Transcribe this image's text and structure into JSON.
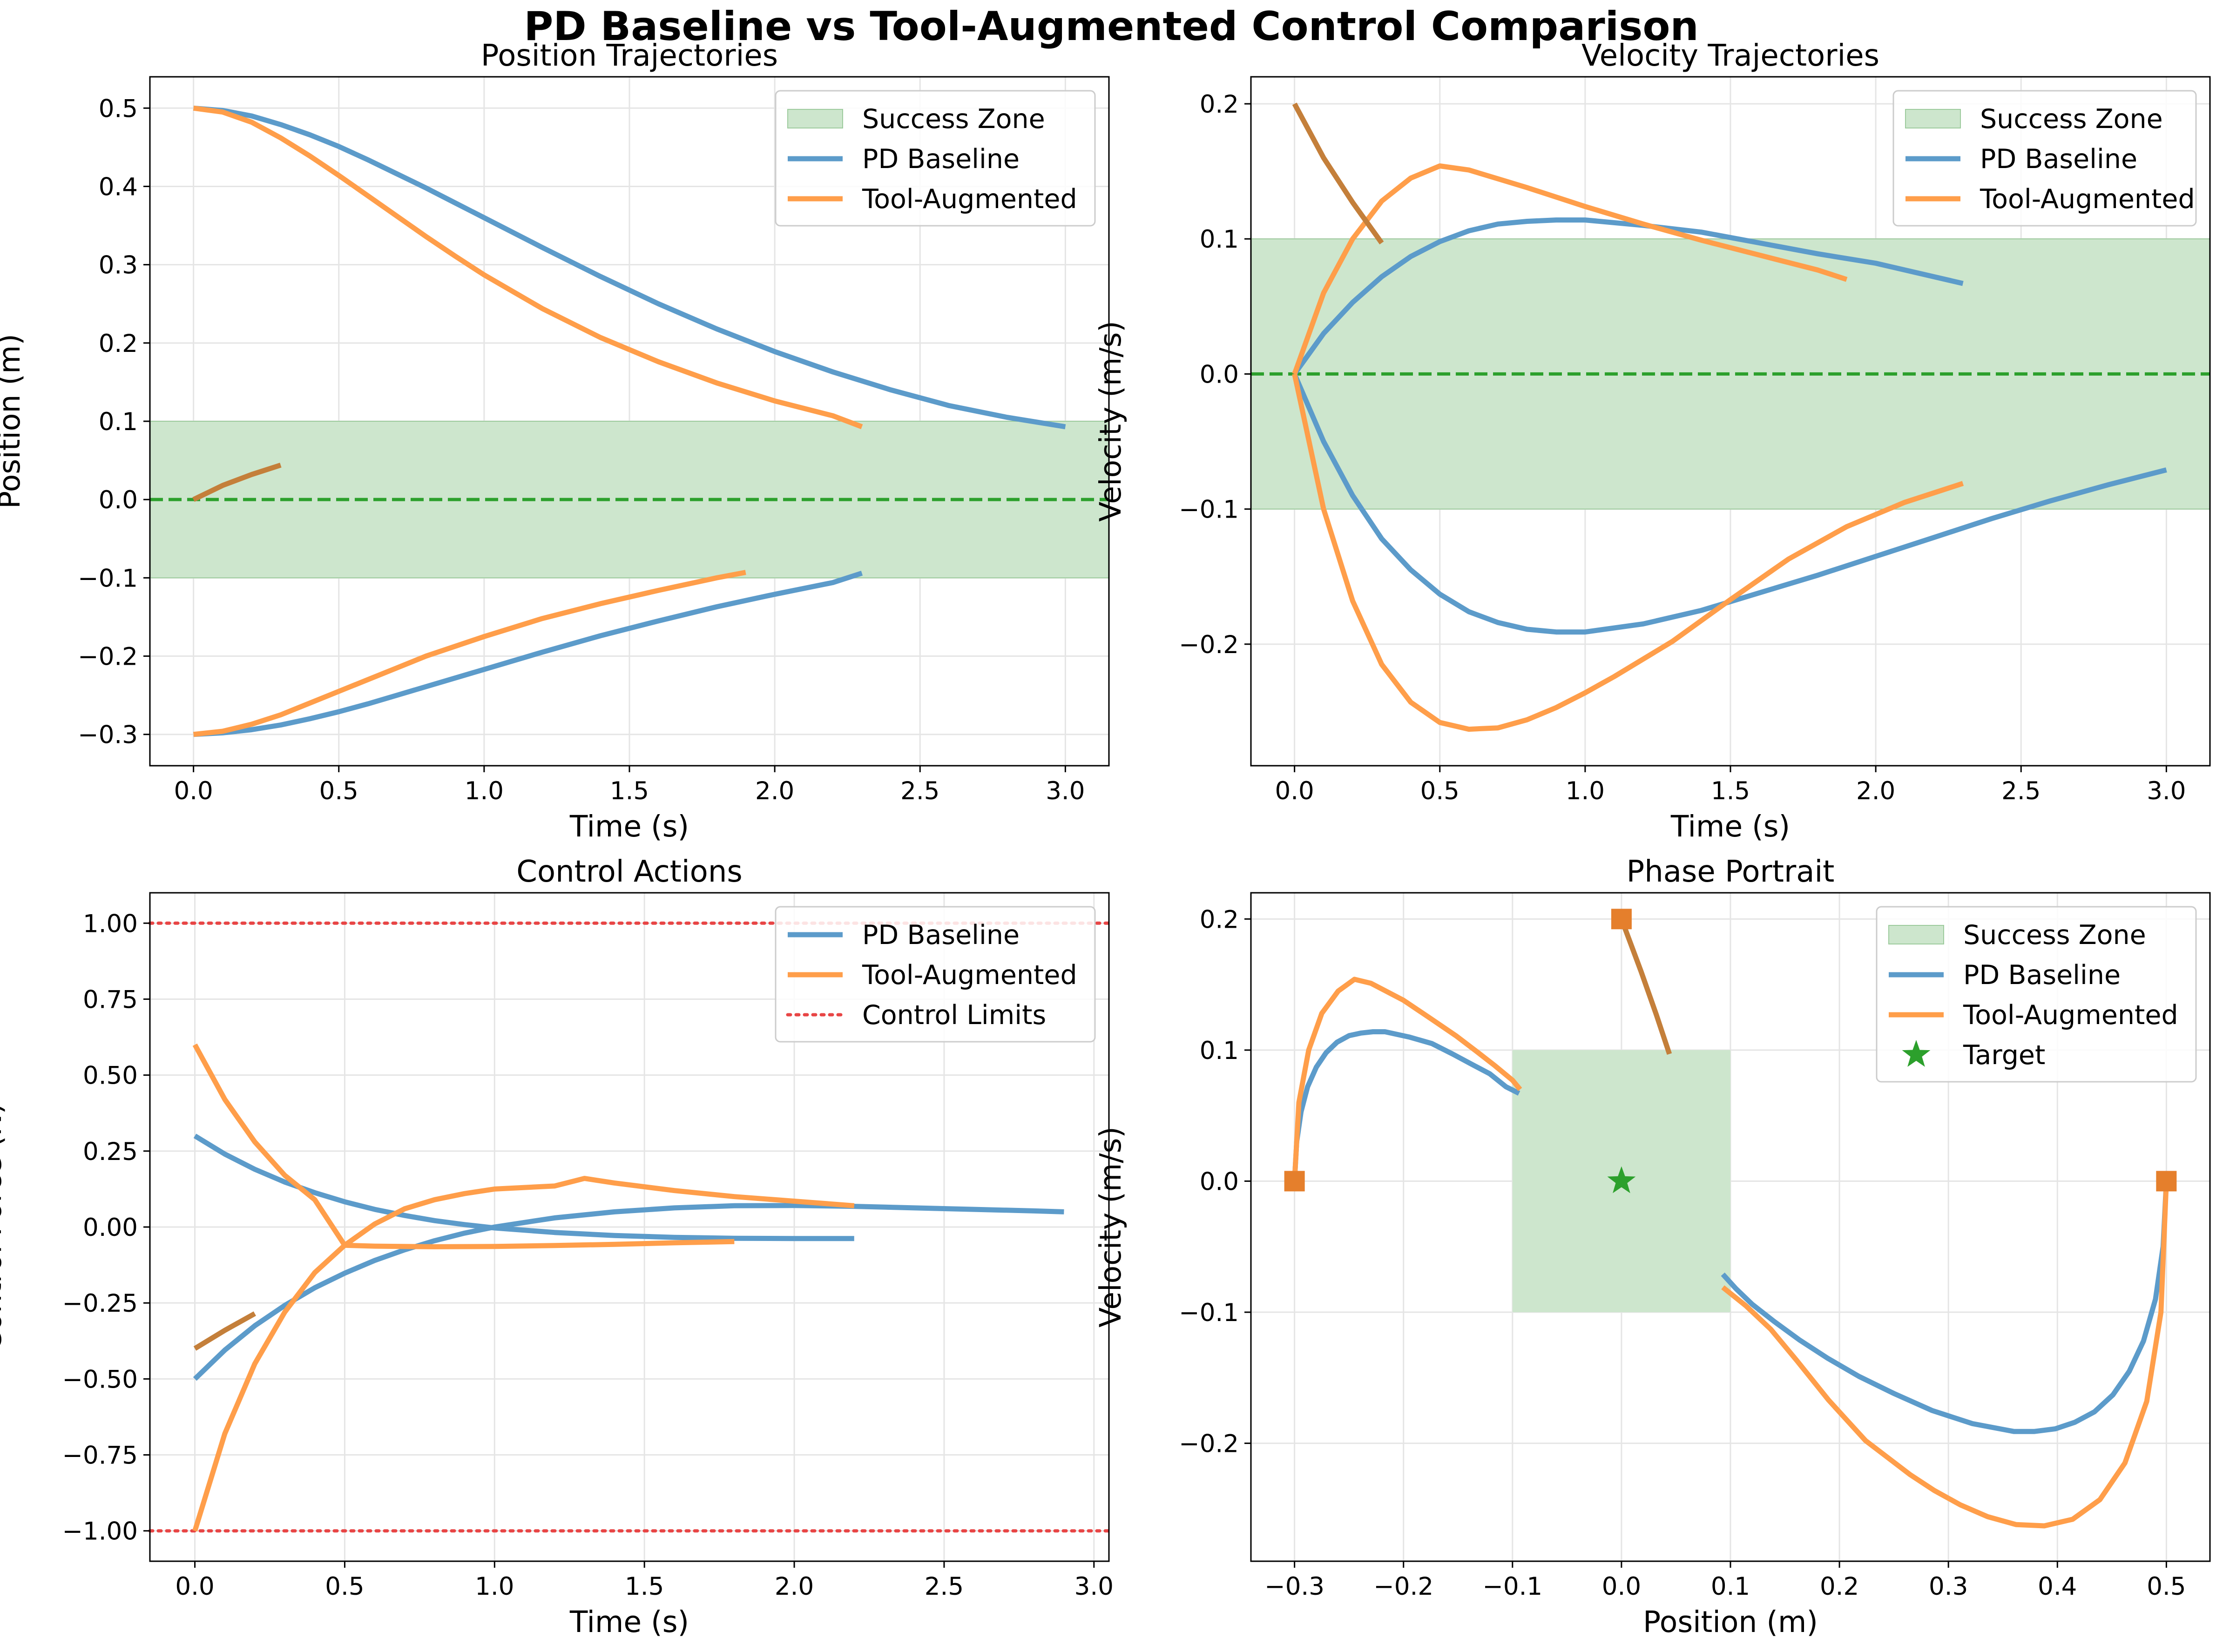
{
  "figure": {
    "title": "PD Baseline vs Tool-Augmented Control Comparison"
  },
  "colors": {
    "pd": "#5c9bca",
    "tool": "#ff9e4a",
    "overlap": "#c47f3a",
    "marker": "#e57f2c",
    "zone": "#cde6cd",
    "zone_edge": "#9dcb9d",
    "target_line": "#2ca02c",
    "limit": "#e84545",
    "grid": "#e5e5e5"
  },
  "chart_data": [
    {
      "type": "line",
      "title": "Position Trajectories",
      "xlabel": "Time (s)",
      "ylabel": "Position (m)",
      "xlim": [
        -0.15,
        3.15
      ],
      "ylim": [
        -0.34,
        0.54
      ],
      "xticks": [
        0.0,
        0.5,
        1.0,
        1.5,
        2.0,
        2.5,
        3.0
      ],
      "xtick_labels": [
        "0.0",
        "0.5",
        "1.0",
        "1.5",
        "2.0",
        "2.5",
        "3.0"
      ],
      "yticks": [
        -0.3,
        -0.2,
        -0.1,
        0.0,
        0.1,
        0.2,
        0.3,
        0.4,
        0.5
      ],
      "ytick_labels": [
        "−0.3",
        "−0.2",
        "−0.1",
        "0.0",
        "0.1",
        "0.2",
        "0.3",
        "0.4",
        "0.5"
      ],
      "grid": true,
      "legend_position": "top-right",
      "success_zone": {
        "axis": "y",
        "range": [
          -0.1,
          0.1
        ]
      },
      "target_line": 0.0,
      "legend": [
        {
          "label": "Success Zone",
          "kind": "patch"
        },
        {
          "label": "PD Baseline",
          "kind": "pd"
        },
        {
          "label": "Tool-Augmented",
          "kind": "tool"
        }
      ],
      "series": [
        {
          "name": "PD Baseline",
          "role": "pd",
          "x": [
            0,
            0.1,
            0.2,
            0.3,
            0.4,
            0.5,
            0.6,
            0.7,
            0.8,
            0.9,
            1.0,
            1.2,
            1.4,
            1.6,
            1.8,
            2.0,
            2.2,
            2.4,
            2.6,
            2.8,
            3.0
          ],
          "y": [
            0.5,
            0.497,
            0.49,
            0.479,
            0.466,
            0.451,
            0.434,
            0.416,
            0.398,
            0.379,
            0.36,
            0.322,
            0.285,
            0.25,
            0.218,
            0.189,
            0.163,
            0.14,
            0.12,
            0.105,
            0.093
          ]
        },
        {
          "role": "pd",
          "x": [
            0,
            0.1,
            0.2,
            0.3,
            0.4,
            0.5,
            0.6,
            0.7,
            0.8,
            1.0,
            1.2,
            1.4,
            1.6,
            1.8,
            2.0,
            2.2,
            2.3
          ],
          "y": [
            -0.3,
            -0.298,
            -0.294,
            -0.288,
            -0.28,
            -0.271,
            -0.261,
            -0.25,
            -0.239,
            -0.217,
            -0.195,
            -0.174,
            -0.155,
            -0.137,
            -0.121,
            -0.106,
            -0.094
          ]
        },
        {
          "name": "Tool-Augmented",
          "role": "tool",
          "x": [
            0,
            0.1,
            0.2,
            0.3,
            0.4,
            0.5,
            0.6,
            0.7,
            0.8,
            0.9,
            1.0,
            1.2,
            1.4,
            1.6,
            1.8,
            2.0,
            2.2,
            2.3
          ],
          "y": [
            0.5,
            0.495,
            0.482,
            0.462,
            0.439,
            0.414,
            0.388,
            0.362,
            0.336,
            0.311,
            0.287,
            0.244,
            0.207,
            0.176,
            0.149,
            0.126,
            0.107,
            0.093
          ]
        },
        {
          "role": "tool",
          "x": [
            0,
            0.1,
            0.2,
            0.3,
            0.4,
            0.5,
            0.6,
            0.7,
            0.8,
            1.0,
            1.2,
            1.4,
            1.6,
            1.8,
            1.9
          ],
          "y": [
            -0.3,
            -0.296,
            -0.287,
            -0.275,
            -0.26,
            -0.245,
            -0.23,
            -0.215,
            -0.2,
            -0.175,
            -0.152,
            -0.133,
            -0.116,
            -0.1,
            -0.093
          ]
        },
        {
          "role": "overlap",
          "x": [
            0,
            0.1,
            0.2,
            0.3
          ],
          "y": [
            0.0,
            0.018,
            0.032,
            0.044
          ]
        }
      ]
    },
    {
      "type": "line",
      "title": "Velocity Trajectories",
      "xlabel": "Time (s)",
      "ylabel": "Velocity (m/s)",
      "xlim": [
        -0.15,
        3.15
      ],
      "ylim": [
        -0.29,
        0.22
      ],
      "xticks": [
        0.0,
        0.5,
        1.0,
        1.5,
        2.0,
        2.5,
        3.0
      ],
      "xtick_labels": [
        "0.0",
        "0.5",
        "1.0",
        "1.5",
        "2.0",
        "2.5",
        "3.0"
      ],
      "yticks": [
        -0.2,
        -0.1,
        0.0,
        0.1,
        0.2
      ],
      "ytick_labels": [
        "−0.2",
        "−0.1",
        "0.0",
        "0.1",
        "0.2"
      ],
      "grid": true,
      "legend_position": "top-right",
      "success_zone": {
        "axis": "y",
        "range": [
          -0.1,
          0.1
        ]
      },
      "target_line": 0.0,
      "legend": [
        {
          "label": "Success Zone",
          "kind": "patch"
        },
        {
          "label": "PD Baseline",
          "kind": "pd"
        },
        {
          "label": "Tool-Augmented",
          "kind": "tool"
        }
      ],
      "series": [
        {
          "role": "pd",
          "x": [
            0,
            0.1,
            0.2,
            0.3,
            0.4,
            0.5,
            0.6,
            0.7,
            0.8,
            0.9,
            1.0,
            1.2,
            1.4,
            1.6,
            1.8,
            2.0,
            2.2,
            2.3
          ],
          "y": [
            0,
            0.03,
            0.053,
            0.072,
            0.087,
            0.098,
            0.106,
            0.111,
            0.113,
            0.114,
            0.114,
            0.11,
            0.105,
            0.097,
            0.089,
            0.082,
            0.072,
            0.067
          ]
        },
        {
          "role": "pd",
          "x": [
            0,
            0.1,
            0.2,
            0.3,
            0.4,
            0.5,
            0.6,
            0.7,
            0.8,
            0.9,
            1.0,
            1.2,
            1.4,
            1.6,
            1.8,
            2.0,
            2.2,
            2.4,
            2.6,
            2.8,
            3.0
          ],
          "y": [
            0,
            -0.05,
            -0.09,
            -0.122,
            -0.145,
            -0.163,
            -0.176,
            -0.184,
            -0.189,
            -0.191,
            -0.191,
            -0.185,
            -0.175,
            -0.162,
            -0.149,
            -0.135,
            -0.121,
            -0.107,
            -0.094,
            -0.082,
            -0.071
          ]
        },
        {
          "role": "tool",
          "x": [
            0,
            0.1,
            0.2,
            0.3,
            0.4,
            0.5,
            0.6,
            0.8,
            1.0,
            1.2,
            1.4,
            1.6,
            1.8,
            1.9
          ],
          "y": [
            0,
            0.06,
            0.1,
            0.128,
            0.145,
            0.154,
            0.151,
            0.138,
            0.124,
            0.111,
            0.099,
            0.088,
            0.077,
            0.07
          ]
        },
        {
          "role": "tool",
          "x": [
            0,
            0.1,
            0.2,
            0.3,
            0.4,
            0.5,
            0.6,
            0.7,
            0.8,
            0.9,
            1.0,
            1.1,
            1.3,
            1.5,
            1.7,
            1.9,
            2.1,
            2.3
          ],
          "y": [
            0,
            -0.1,
            -0.168,
            -0.215,
            -0.243,
            -0.258,
            -0.263,
            -0.262,
            -0.256,
            -0.247,
            -0.236,
            -0.224,
            -0.198,
            -0.167,
            -0.137,
            -0.113,
            -0.095,
            -0.081
          ]
        },
        {
          "role": "overlap",
          "x": [
            0,
            0.1,
            0.2,
            0.3
          ],
          "y": [
            0.2,
            0.16,
            0.127,
            0.097
          ]
        }
      ]
    },
    {
      "type": "line",
      "title": "Control Actions",
      "xlabel": "Time (s)",
      "ylabel": "Control Force (N)",
      "xlim": [
        -0.15,
        3.05
      ],
      "ylim": [
        -1.1,
        1.1
      ],
      "xticks": [
        0.0,
        0.5,
        1.0,
        1.5,
        2.0,
        2.5,
        3.0
      ],
      "xtick_labels": [
        "0.0",
        "0.5",
        "1.0",
        "1.5",
        "2.0",
        "2.5",
        "3.0"
      ],
      "yticks": [
        -1.0,
        -0.75,
        -0.5,
        -0.25,
        0.0,
        0.25,
        0.5,
        0.75,
        1.0
      ],
      "ytick_labels": [
        "−1.00",
        "−0.75",
        "−0.50",
        "−0.25",
        "0.00",
        "0.25",
        "0.50",
        "0.75",
        "1.00"
      ],
      "grid": true,
      "legend_position": "top-right",
      "limit_lines": [
        1.0,
        -1.0
      ],
      "legend": [
        {
          "label": "PD Baseline",
          "kind": "pd"
        },
        {
          "label": "Tool-Augmented",
          "kind": "tool"
        },
        {
          "label": "Control Limits",
          "kind": "limit"
        }
      ],
      "series": [
        {
          "role": "pd",
          "x": [
            0,
            0.1,
            0.2,
            0.3,
            0.4,
            0.5,
            0.6,
            0.7,
            0.8,
            0.9,
            1.0,
            1.2,
            1.4,
            1.6,
            1.8,
            2.0,
            2.2
          ],
          "y": [
            0.3,
            0.24,
            0.19,
            0.148,
            0.113,
            0.083,
            0.058,
            0.038,
            0.021,
            0.008,
            -0.003,
            -0.018,
            -0.028,
            -0.034,
            -0.037,
            -0.038,
            -0.038
          ]
        },
        {
          "role": "pd",
          "x": [
            0,
            0.1,
            0.2,
            0.3,
            0.4,
            0.5,
            0.6,
            0.7,
            0.8,
            0.9,
            1.0,
            1.2,
            1.4,
            1.6,
            1.8,
            2.0,
            2.2,
            2.4,
            2.6,
            2.8,
            2.9
          ],
          "y": [
            -0.5,
            -0.405,
            -0.325,
            -0.258,
            -0.2,
            -0.152,
            -0.11,
            -0.075,
            -0.045,
            -0.02,
            0.0,
            0.03,
            0.05,
            0.063,
            0.07,
            0.071,
            0.068,
            0.063,
            0.058,
            0.053,
            0.05
          ]
        },
        {
          "role": "tool",
          "x": [
            0,
            0.1,
            0.2,
            0.3,
            0.4,
            0.5,
            0.6,
            0.7,
            0.8,
            0.9,
            1.0,
            1.1,
            1.2,
            1.3,
            1.4,
            1.6,
            1.8,
            2.0,
            2.2
          ],
          "y": [
            -1.0,
            -0.68,
            -0.45,
            -0.28,
            -0.15,
            -0.06,
            0.01,
            0.06,
            0.09,
            0.11,
            0.125,
            0.13,
            0.135,
            0.16,
            0.145,
            0.12,
            0.1,
            0.085,
            0.07
          ]
        },
        {
          "role": "tool",
          "x": [
            0,
            0.1,
            0.2,
            0.3,
            0.4,
            0.5,
            0.6,
            0.8,
            1.0,
            1.2,
            1.4,
            1.6,
            1.8
          ],
          "y": [
            0.6,
            0.42,
            0.28,
            0.17,
            0.09,
            -0.06,
            -0.063,
            -0.065,
            -0.064,
            -0.061,
            -0.057,
            -0.052,
            -0.048
          ]
        },
        {
          "role": "overlap",
          "x": [
            0,
            0.1,
            0.2
          ],
          "y": [
            -0.4,
            -0.34,
            -0.285
          ]
        }
      ]
    },
    {
      "type": "line",
      "title": "Phase Portrait",
      "xlabel": "Position (m)",
      "ylabel": "Velocity (m/s)",
      "xlim": [
        -0.34,
        0.54
      ],
      "ylim": [
        -0.29,
        0.22
      ],
      "xticks": [
        -0.3,
        -0.2,
        -0.1,
        0.0,
        0.1,
        0.2,
        0.3,
        0.4,
        0.5
      ],
      "xtick_labels": [
        "−0.3",
        "−0.2",
        "−0.1",
        "0.0",
        "0.1",
        "0.2",
        "0.3",
        "0.4",
        "0.5"
      ],
      "yticks": [
        -0.2,
        -0.1,
        0.0,
        0.1,
        0.2
      ],
      "ytick_labels": [
        "−0.2",
        "−0.1",
        "0.0",
        "0.1",
        "0.2"
      ],
      "grid": true,
      "legend_position": "top-right",
      "success_box": {
        "x": [
          -0.1,
          0.1
        ],
        "y": [
          -0.1,
          0.1
        ]
      },
      "target_point": [
        0.0,
        0.0
      ],
      "legend": [
        {
          "label": "Success Zone",
          "kind": "patch"
        },
        {
          "label": "PD Baseline",
          "kind": "pd"
        },
        {
          "label": "Tool-Augmented",
          "kind": "tool"
        },
        {
          "label": "Target",
          "kind": "star"
        }
      ],
      "start_markers": [
        [
          -0.3,
          0.0
        ],
        [
          0.0,
          0.2
        ],
        [
          0.5,
          0.0
        ]
      ],
      "series": [
        {
          "role": "pd",
          "x": [
            -0.3,
            -0.298,
            -0.294,
            -0.288,
            -0.28,
            -0.271,
            -0.261,
            -0.25,
            -0.239,
            -0.228,
            -0.217,
            -0.195,
            -0.174,
            -0.155,
            -0.137,
            -0.121,
            -0.106,
            -0.094
          ],
          "y": [
            0,
            0.03,
            0.053,
            0.072,
            0.087,
            0.098,
            0.106,
            0.111,
            0.113,
            0.114,
            0.114,
            0.11,
            0.105,
            0.097,
            0.089,
            0.082,
            0.072,
            0.067
          ]
        },
        {
          "role": "pd",
          "x": [
            0.5,
            0.497,
            0.49,
            0.479,
            0.466,
            0.451,
            0.434,
            0.416,
            0.398,
            0.379,
            0.36,
            0.322,
            0.285,
            0.25,
            0.218,
            0.189,
            0.163,
            0.14,
            0.12,
            0.105,
            0.093
          ],
          "y": [
            0,
            -0.05,
            -0.09,
            -0.122,
            -0.145,
            -0.163,
            -0.176,
            -0.184,
            -0.189,
            -0.191,
            -0.191,
            -0.185,
            -0.175,
            -0.162,
            -0.149,
            -0.135,
            -0.121,
            -0.107,
            -0.094,
            -0.082,
            -0.071
          ]
        },
        {
          "role": "tool",
          "x": [
            -0.3,
            -0.296,
            -0.287,
            -0.275,
            -0.26,
            -0.245,
            -0.23,
            -0.2,
            -0.175,
            -0.152,
            -0.133,
            -0.116,
            -0.1,
            -0.093
          ],
          "y": [
            0,
            0.06,
            0.1,
            0.128,
            0.145,
            0.154,
            0.151,
            0.138,
            0.124,
            0.111,
            0.099,
            0.088,
            0.077,
            0.07
          ]
        },
        {
          "role": "tool",
          "x": [
            0.5,
            0.495,
            0.482,
            0.462,
            0.439,
            0.414,
            0.388,
            0.362,
            0.336,
            0.311,
            0.287,
            0.265,
            0.224,
            0.19,
            0.161,
            0.137,
            0.114,
            0.093
          ],
          "y": [
            0,
            -0.1,
            -0.168,
            -0.215,
            -0.243,
            -0.258,
            -0.263,
            -0.262,
            -0.256,
            -0.247,
            -0.236,
            -0.224,
            -0.198,
            -0.167,
            -0.137,
            -0.113,
            -0.095,
            -0.081
          ]
        },
        {
          "role": "overlap",
          "x": [
            0.0,
            0.018,
            0.032,
            0.044
          ],
          "y": [
            0.2,
            0.16,
            0.127,
            0.097
          ]
        }
      ]
    }
  ]
}
